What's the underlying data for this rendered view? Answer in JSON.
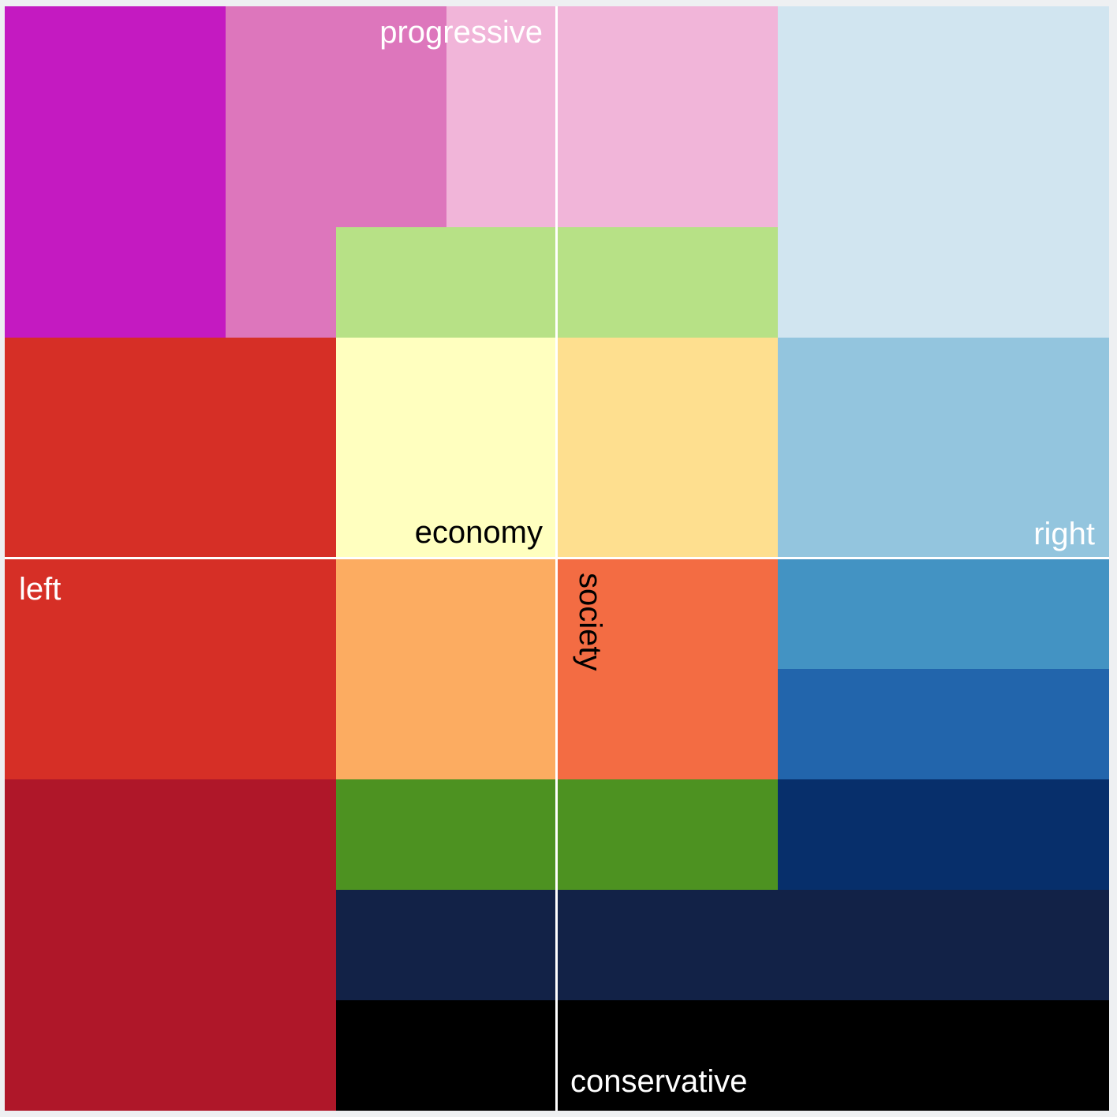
{
  "colors": {
    "background": "#eef0f2",
    "axis": "#ffffff",
    "dark_text": "#000000",
    "light_text": "#ffffff"
  },
  "labels": {
    "progressive": "progressive",
    "economy": "economy",
    "right": "right",
    "left": "left",
    "society": "society",
    "conservative": "conservative"
  },
  "regions": [
    {
      "name": "magenta",
      "color": "#c41ac1"
    },
    {
      "name": "orchid",
      "color": "#dd76bc"
    },
    {
      "name": "light-pink-left",
      "color": "#f1b5d9"
    },
    {
      "name": "light-pink-right",
      "color": "#f1b5d9"
    },
    {
      "name": "light-blue",
      "color": "#d1e5f0"
    },
    {
      "name": "light-green-left",
      "color": "#b7e186"
    },
    {
      "name": "light-green-right",
      "color": "#b7e186"
    },
    {
      "name": "red-upper",
      "color": "#d62f26"
    },
    {
      "name": "pale-yellow",
      "color": "#ffffbf"
    },
    {
      "name": "light-orange",
      "color": "#fedf8f"
    },
    {
      "name": "sky-blue",
      "color": "#93c5de"
    },
    {
      "name": "red-lower",
      "color": "#d62f26"
    },
    {
      "name": "orange",
      "color": "#fcac61"
    },
    {
      "name": "red-orange",
      "color": "#f36c43"
    },
    {
      "name": "steel-blue",
      "color": "#4393c3"
    },
    {
      "name": "royal-blue",
      "color": "#2265ac"
    },
    {
      "name": "crimson",
      "color": "#af1729"
    },
    {
      "name": "green-left",
      "color": "#4d9221"
    },
    {
      "name": "green-right",
      "color": "#4d9221"
    },
    {
      "name": "navy",
      "color": "#072f6b"
    },
    {
      "name": "midnight-left",
      "color": "#122247"
    },
    {
      "name": "midnight-right",
      "color": "#122247"
    },
    {
      "name": "black-left",
      "color": "#000000"
    },
    {
      "name": "black-right",
      "color": "#000000"
    }
  ]
}
